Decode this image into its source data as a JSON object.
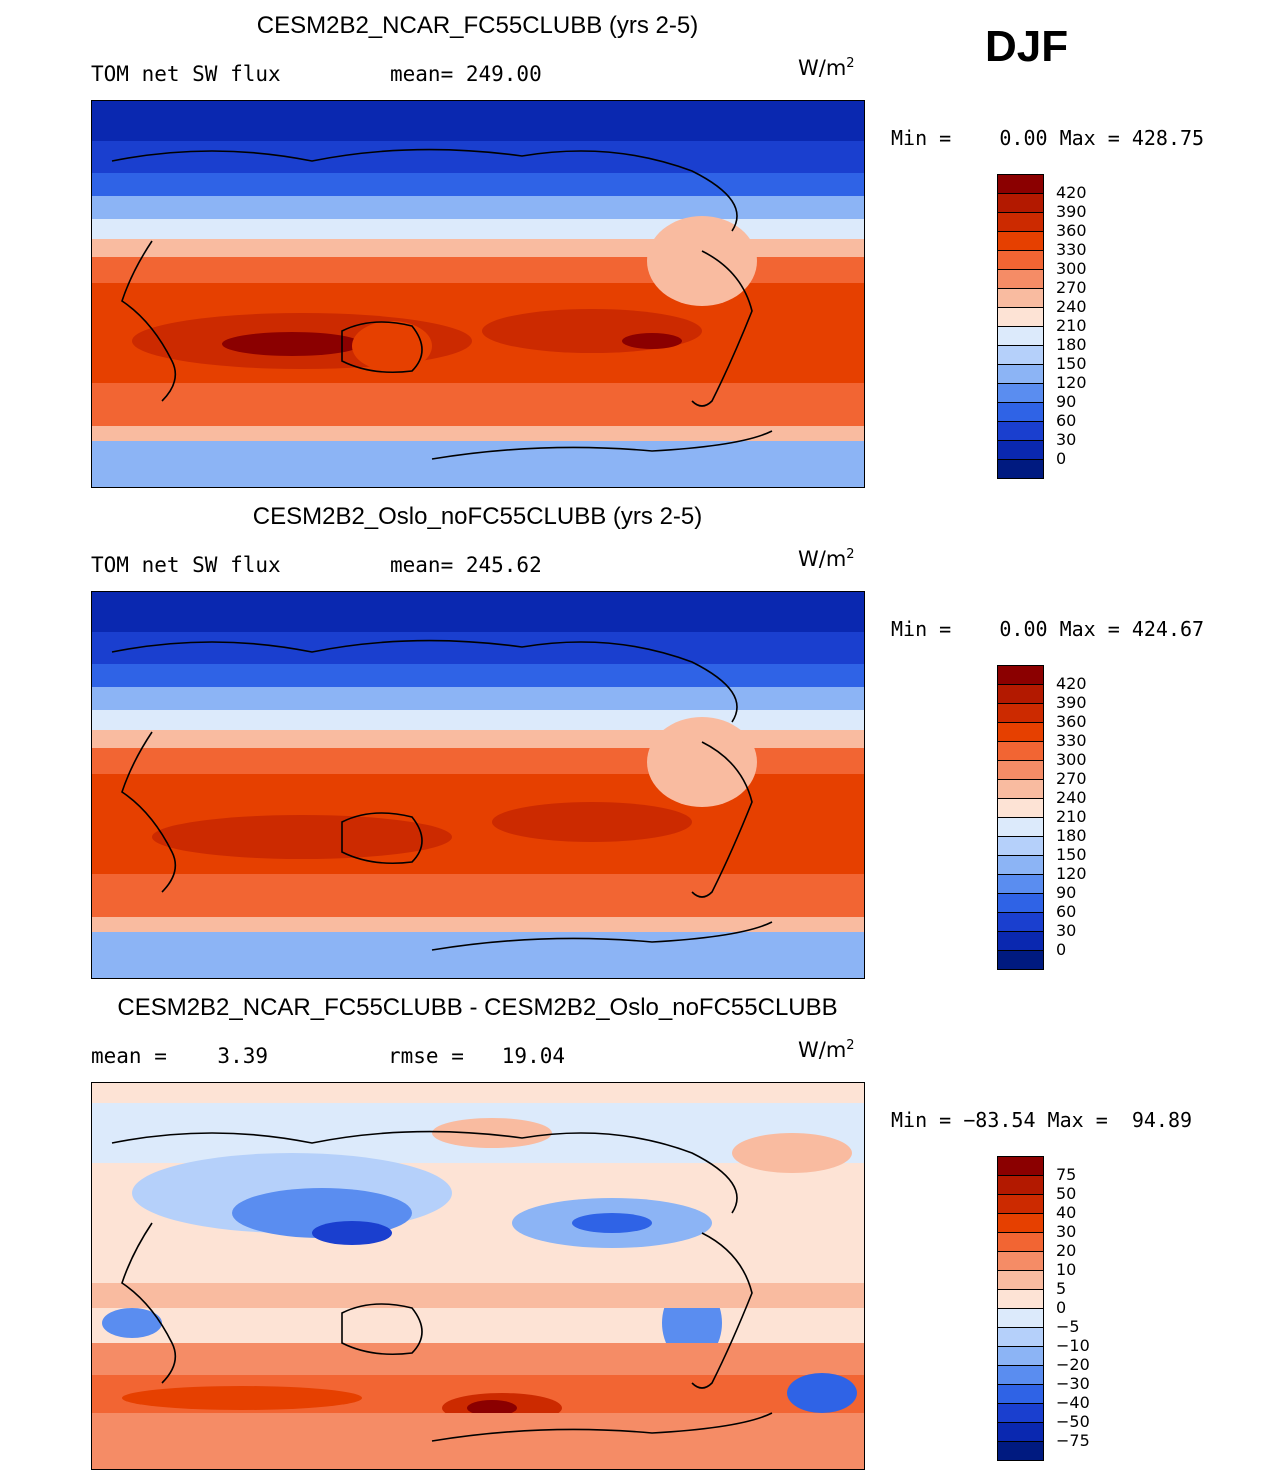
{
  "season": "DJF",
  "panels": [
    {
      "title": "CESM2B2_NCAR_FC55CLUBB (yrs 2-5)",
      "left_text": "TOM net SW flux",
      "right_text": "mean= 249.00",
      "units": "W/m",
      "units_sup": "2",
      "minmax": "Min =    0.00 Max = 428.75",
      "kind": "abs"
    },
    {
      "title": "CESM2B2_Oslo_noFC55CLUBB (yrs 2-5)",
      "left_text": "TOM net SW flux",
      "right_text": "mean= 245.62",
      "units": "W/m",
      "units_sup": "2",
      "minmax": "Min =    0.00 Max = 424.67",
      "kind": "abs"
    },
    {
      "title": "CESM2B2_NCAR_FC55CLUBB - CESM2B2_Oslo_noFC55CLUBB",
      "left_text": "mean =    3.39",
      "right_text": "rmse =   19.04",
      "units": "W/m",
      "units_sup": "2",
      "minmax": "Min = −83.54 Max =  94.89",
      "kind": "diff"
    }
  ],
  "colorbars": {
    "abs": {
      "labels": [
        "420",
        "390",
        "360",
        "330",
        "300",
        "270",
        "240",
        "210",
        "180",
        "150",
        "120",
        "90",
        "60",
        "30",
        "0"
      ],
      "colors": [
        "#8b0000",
        "#b31900",
        "#cc2a00",
        "#e64000",
        "#f26533",
        "#f58c66",
        "#f9bba0",
        "#fde3d5",
        "#dceafb",
        "#b5d0fa",
        "#8cb4f5",
        "#5a8df0",
        "#2f63e6",
        "#1a3fcf",
        "#0a28b0",
        "#001a80"
      ]
    },
    "diff": {
      "labels": [
        "75",
        "50",
        "40",
        "30",
        "20",
        "10",
        "5",
        "0",
        "−5",
        "−10",
        "−20",
        "−30",
        "−40",
        "−50",
        "−75"
      ],
      "colors": [
        "#8b0000",
        "#b31900",
        "#cc2a00",
        "#e64000",
        "#f26533",
        "#f58c66",
        "#f9bba0",
        "#fde3d5",
        "#dceafb",
        "#b5d0fa",
        "#8cb4f5",
        "#5a8df0",
        "#2f63e6",
        "#1a3fcf",
        "#0a28b0",
        "#001a80"
      ]
    }
  }
}
